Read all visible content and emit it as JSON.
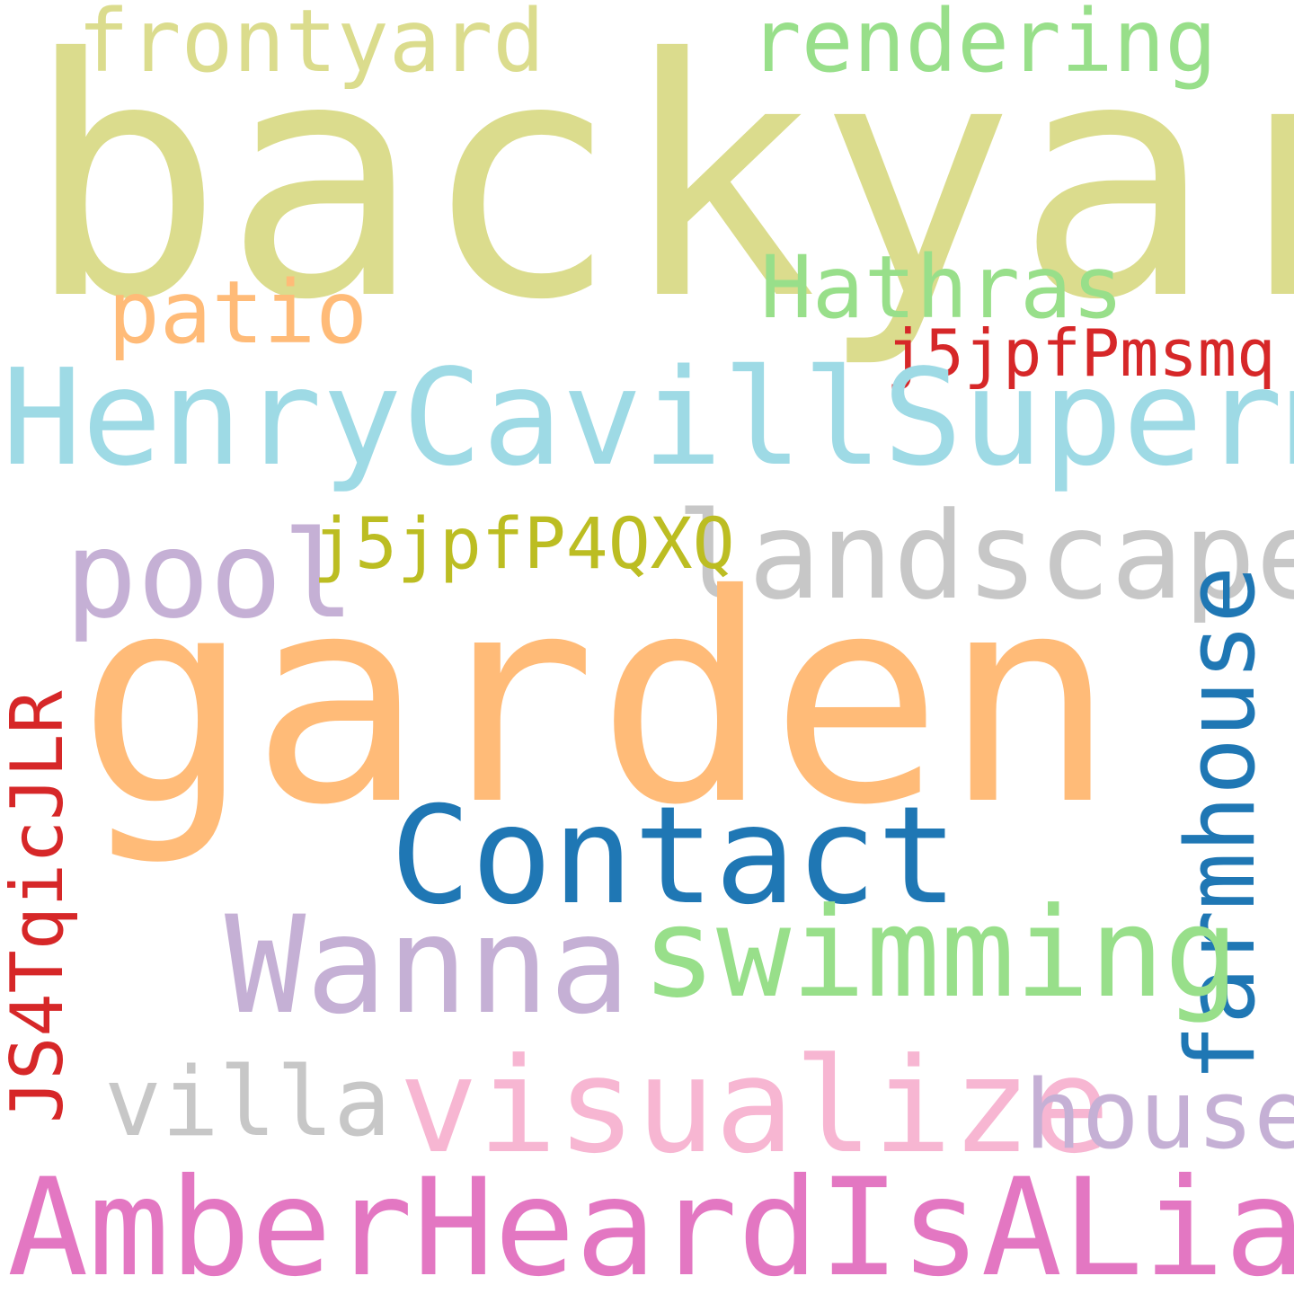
{
  "words": {
    "backyard": {
      "text": "backyard",
      "color": "#dbdc8d"
    },
    "frontyard": {
      "text": "frontyard",
      "color": "#dbdc8d"
    },
    "rendering": {
      "text": "rendering",
      "color": "#98df8a"
    },
    "patio": {
      "text": "patio",
      "color": "#ffbb78"
    },
    "hathras": {
      "text": "Hathras",
      "color": "#98df8a"
    },
    "j5jpfpmsmq": {
      "text": "j5jpfPmsmq",
      "color": "#d62728"
    },
    "henry": {
      "text": "HenryCavillSuperma",
      "color": "#9edae5"
    },
    "pool": {
      "text": "pool",
      "color": "#c5b0d5"
    },
    "j5jpfp4qxq": {
      "text": "j5jpfP4QXQ",
      "color": "#bcbd22"
    },
    "landscape": {
      "text": "landscape",
      "color": "#c7c7c7"
    },
    "garden": {
      "text": "garden",
      "color": "#ffbb78"
    },
    "farmhouse": {
      "text": "farmhouse",
      "color": "#1f77b4"
    },
    "js4t": {
      "text": "JS4TqicJLR",
      "color": "#d62728"
    },
    "contact": {
      "text": "Contact",
      "color": "#1f77b4"
    },
    "wanna": {
      "text": "Wanna",
      "color": "#c5b0d5"
    },
    "swimming": {
      "text": "swimming",
      "color": "#98df8a"
    },
    "villa": {
      "text": "villa",
      "color": "#c7c7c7"
    },
    "visualize": {
      "text": "visualize",
      "color": "#f7b6d2"
    },
    "house": {
      "text": "house",
      "color": "#c5b0d5"
    },
    "amber": {
      "text": "AmberHeardIsALiar",
      "color": "#e377c2"
    }
  }
}
